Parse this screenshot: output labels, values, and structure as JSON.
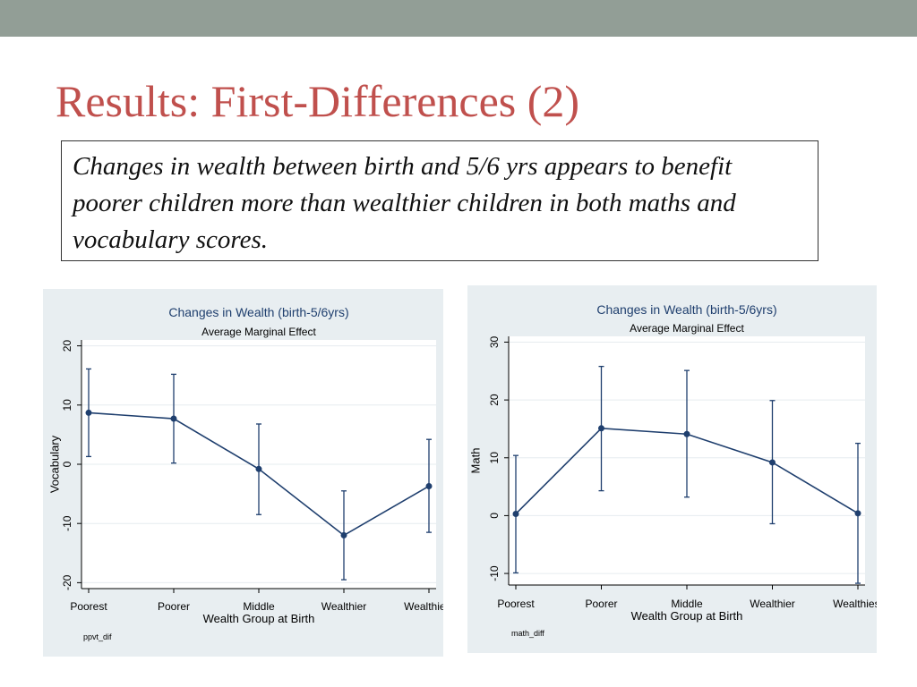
{
  "slide": {
    "title": "Results: First-Differences (2)",
    "callout": "Changes in wealth between birth and 5/6 yrs appears to benefit poorer children more than wealthier children in both maths and vocabulary scores."
  },
  "colors": {
    "topbar": "#929e96",
    "title": "#c0504d",
    "series": "#1f3f6e",
    "panel_bg": "#e8eef1"
  },
  "chart_data": [
    {
      "type": "line",
      "title": "Changes in Wealth (birth-5/6yrs)",
      "subtitle": "Average Marginal Effect",
      "xlabel": "Wealth Group at Birth",
      "ylabel": "Vocabulary",
      "note": "ppvt_dif",
      "categories": [
        "Poorest",
        "Poorer",
        "Middle",
        "Wealthier",
        "Wealthiest"
      ],
      "values": [
        8.7,
        7.7,
        -0.8,
        -12.0,
        -3.7
      ],
      "ci_low": [
        1.3,
        0.2,
        -8.5,
        -19.5,
        -11.5
      ],
      "ci_high": [
        16.1,
        15.2,
        6.8,
        -4.5,
        4.2
      ],
      "yticks": [
        -20,
        -10,
        0,
        10,
        20
      ],
      "ylim": [
        -21,
        21
      ],
      "grid": true
    },
    {
      "type": "line",
      "title": "Changes in Wealth (birth-5/6yrs)",
      "subtitle": "Average Marginal Effect",
      "xlabel": "Wealth Group at Birth",
      "ylabel": "Math",
      "note": "math_diff",
      "categories": [
        "Poorest",
        "Poorer",
        "Middle",
        "Wealthier",
        "Wealthiest"
      ],
      "values": [
        0.3,
        15.1,
        14.1,
        9.2,
        0.4
      ],
      "ci_low": [
        -9.9,
        4.3,
        3.2,
        -1.4,
        -11.7
      ],
      "ci_high": [
        10.4,
        25.8,
        25.1,
        19.9,
        12.5
      ],
      "yticks": [
        -10,
        0,
        10,
        20,
        30
      ],
      "ylim": [
        -12,
        31
      ],
      "grid": true
    }
  ]
}
